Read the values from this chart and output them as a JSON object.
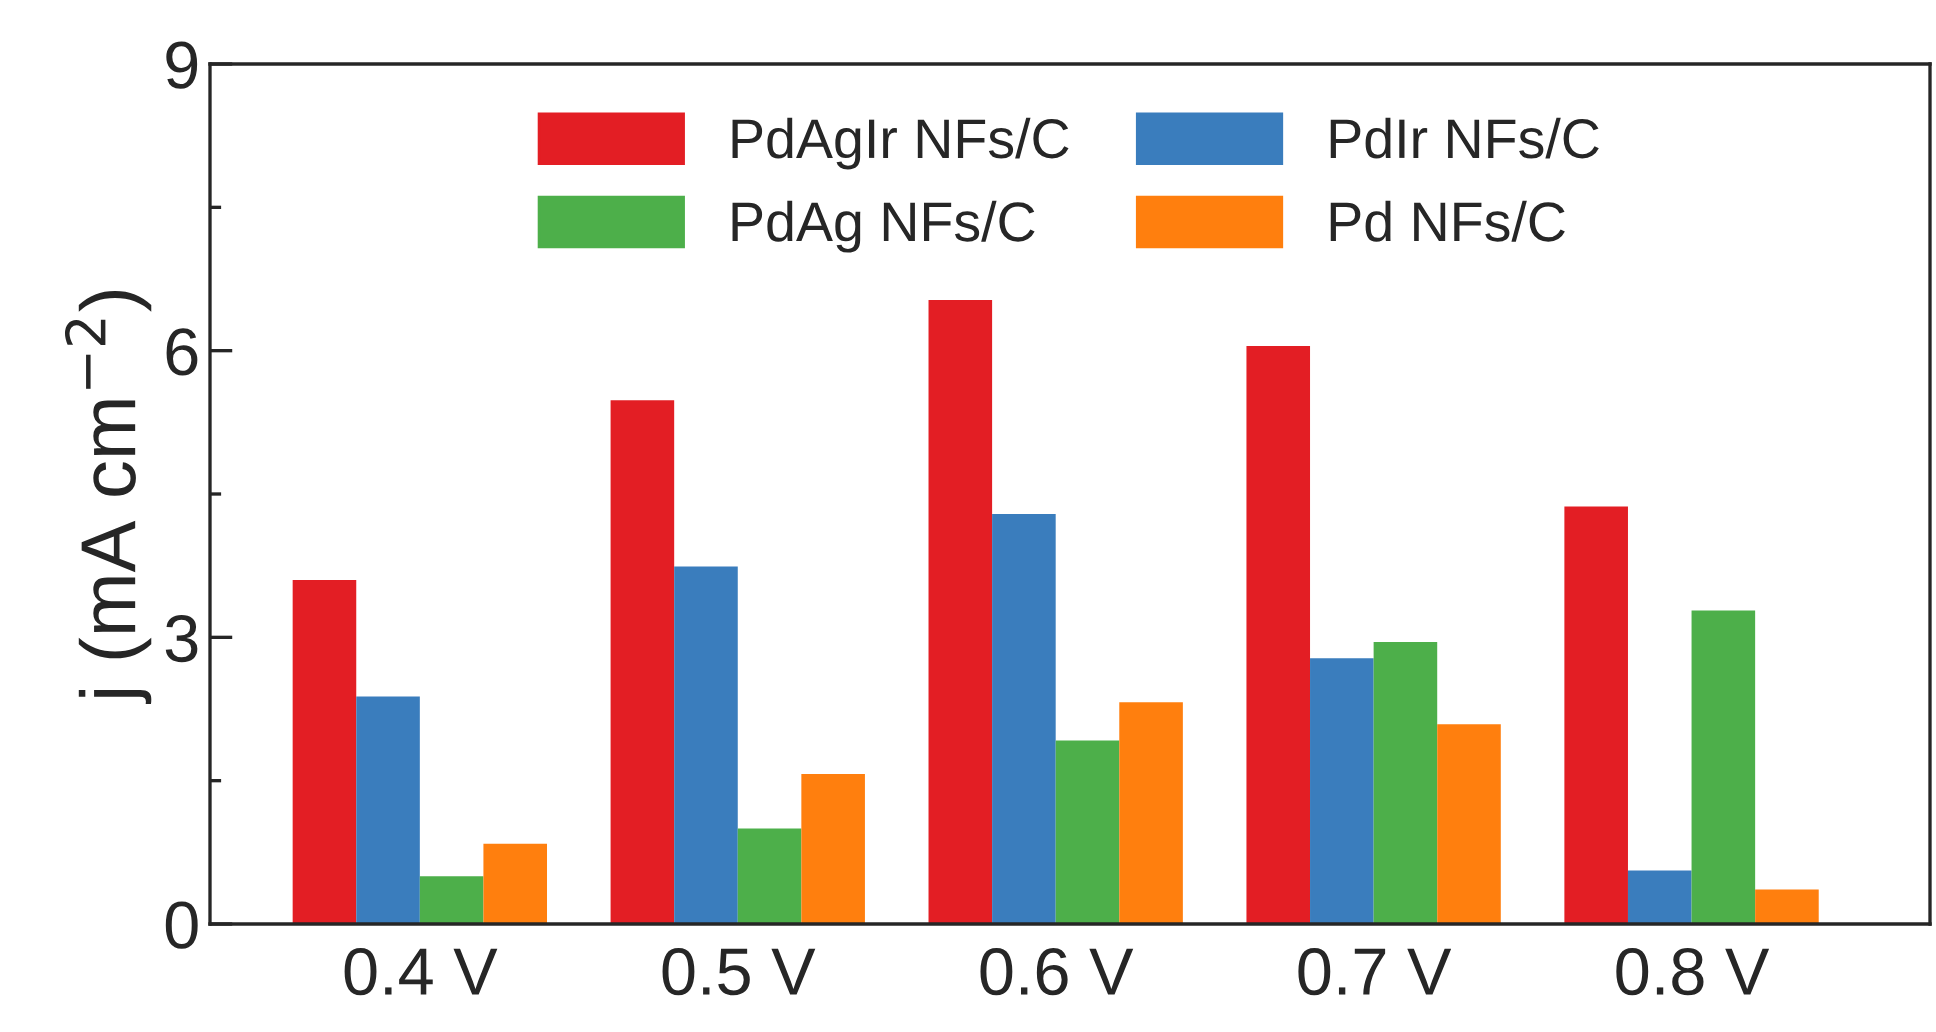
{
  "chart_data": {
    "type": "bar",
    "ylabel": "j (mA cm$^{−2}$)",
    "categories": [
      "0.4 V",
      "0.5 V",
      "0.6 V",
      "0.7 V",
      "0.8 V"
    ],
    "series": [
      {
        "name": "PdAgIr NFs/C",
        "color": "#e31e24",
        "values": [
          3.6,
          5.48,
          6.53,
          6.05,
          4.37
        ]
      },
      {
        "name": "PdIr NFs/C",
        "color": "#3a7dbd",
        "values": [
          2.38,
          3.74,
          4.29,
          2.78,
          0.56
        ]
      },
      {
        "name": "PdAg NFs/C",
        "color": "#4daf4a",
        "values": [
          0.5,
          1.0,
          1.92,
          2.95,
          3.28
        ]
      },
      {
        "name": "Pd NFs/C",
        "color": "#ff7f0e",
        "values": [
          0.84,
          1.57,
          2.32,
          2.09,
          0.36
        ]
      }
    ],
    "ylim": [
      0,
      9
    ],
    "yticks": [
      0,
      3,
      6,
      9
    ],
    "grid": false,
    "legend": "top"
  }
}
